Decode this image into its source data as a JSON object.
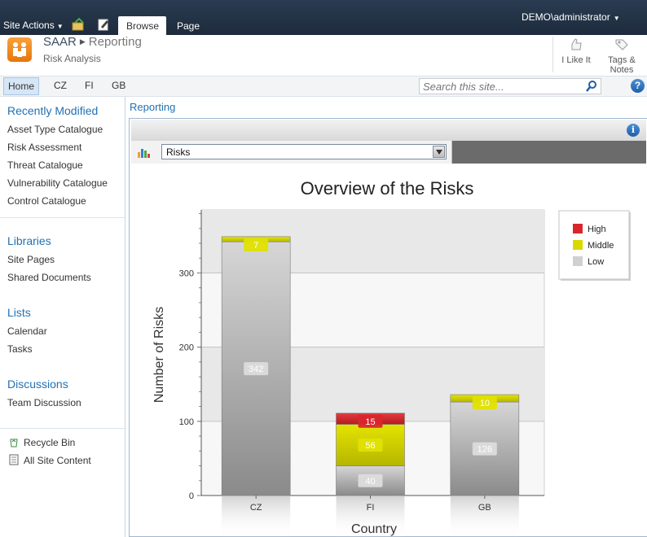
{
  "ribbon": {
    "site_actions": "Site Actions",
    "tabs": [
      "Browse",
      "Page"
    ],
    "user": "DEMO\\administrator"
  },
  "header": {
    "site": "SAAR",
    "current": "Reporting",
    "subtitle": "Risk Analysis",
    "i_like_it": "I Like It",
    "tags_notes_line1": "Tags &",
    "tags_notes_line2": "Notes"
  },
  "topnav": {
    "items": [
      "Home",
      "CZ",
      "FI",
      "GB"
    ],
    "search_placeholder": "Search this site..."
  },
  "leftnav": {
    "recent_heading": "Recently Modified",
    "recent": [
      "Asset Type Catalogue",
      "Risk Assessment",
      "Threat Catalogue",
      "Vulnerability Catalogue",
      "Control Catalogue"
    ],
    "libraries_heading": "Libraries",
    "libraries": [
      "Site Pages",
      "Shared Documents"
    ],
    "lists_heading": "Lists",
    "lists": [
      "Calendar",
      "Tasks"
    ],
    "discussions_heading": "Discussions",
    "discussions": [
      "Team Discussion"
    ],
    "recycle_bin": "Recycle Bin",
    "all_site_content": "All Site Content"
  },
  "main": {
    "breadcrumb": "Reporting",
    "report_selected": "Risks"
  },
  "chart_data": {
    "type": "bar",
    "stacked": true,
    "title": "Overview of the Risks",
    "xlabel": "Country",
    "ylabel": "Number of Risks",
    "categories": [
      "CZ",
      "FI",
      "GB"
    ],
    "ylim": [
      0,
      385
    ],
    "yticks": [
      0,
      100,
      200,
      300
    ],
    "series": [
      {
        "name": "Low",
        "color": "#c8c8c8",
        "values": [
          342,
          40,
          126
        ]
      },
      {
        "name": "Middle",
        "color": "#d9d900",
        "values": [
          7,
          56,
          10
        ]
      },
      {
        "name": "High",
        "color": "#d9262c",
        "values": [
          0,
          15,
          0
        ]
      }
    ],
    "legend": [
      "High",
      "Middle",
      "Low"
    ],
    "legend_position": "top-right"
  }
}
